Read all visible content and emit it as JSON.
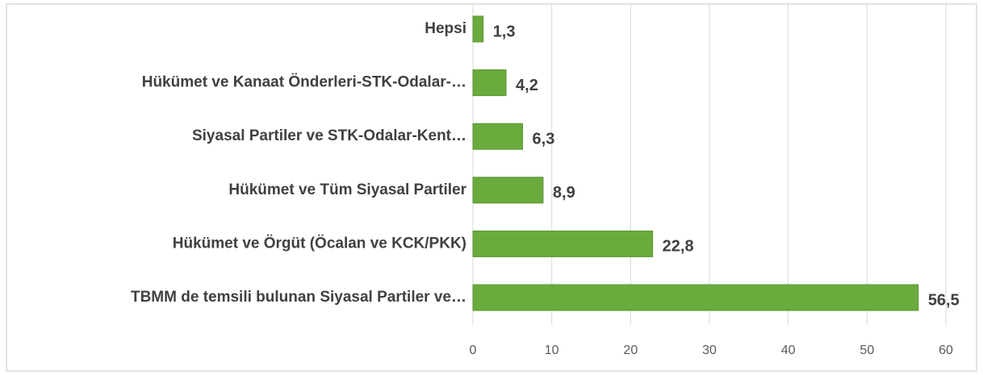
{
  "chart_data": {
    "type": "bar",
    "orientation": "horizontal",
    "categories": [
      "Hepsi",
      "Hükümet ve Kanaat Önderleri-STK-Odalar-…",
      "Siyasal Partiler ve STK-Odalar-Kent…",
      "Hükümet ve Tüm Siyasal Partiler",
      "Hükümet ve Örgüt (Öcalan ve KCK/PKK)",
      "TBMM de temsili bulunan Siyasal Partiler ve…"
    ],
    "values": [
      1.3,
      4.2,
      6.3,
      8.9,
      22.8,
      56.5
    ],
    "value_labels": [
      "1,3",
      "4,2",
      "6,3",
      "8,9",
      "22,8",
      "56,5"
    ],
    "color": "#6aab3e",
    "xlim": [
      0,
      60
    ],
    "xticks": [
      0,
      10,
      20,
      30,
      40,
      50,
      60
    ],
    "grid": true
  }
}
